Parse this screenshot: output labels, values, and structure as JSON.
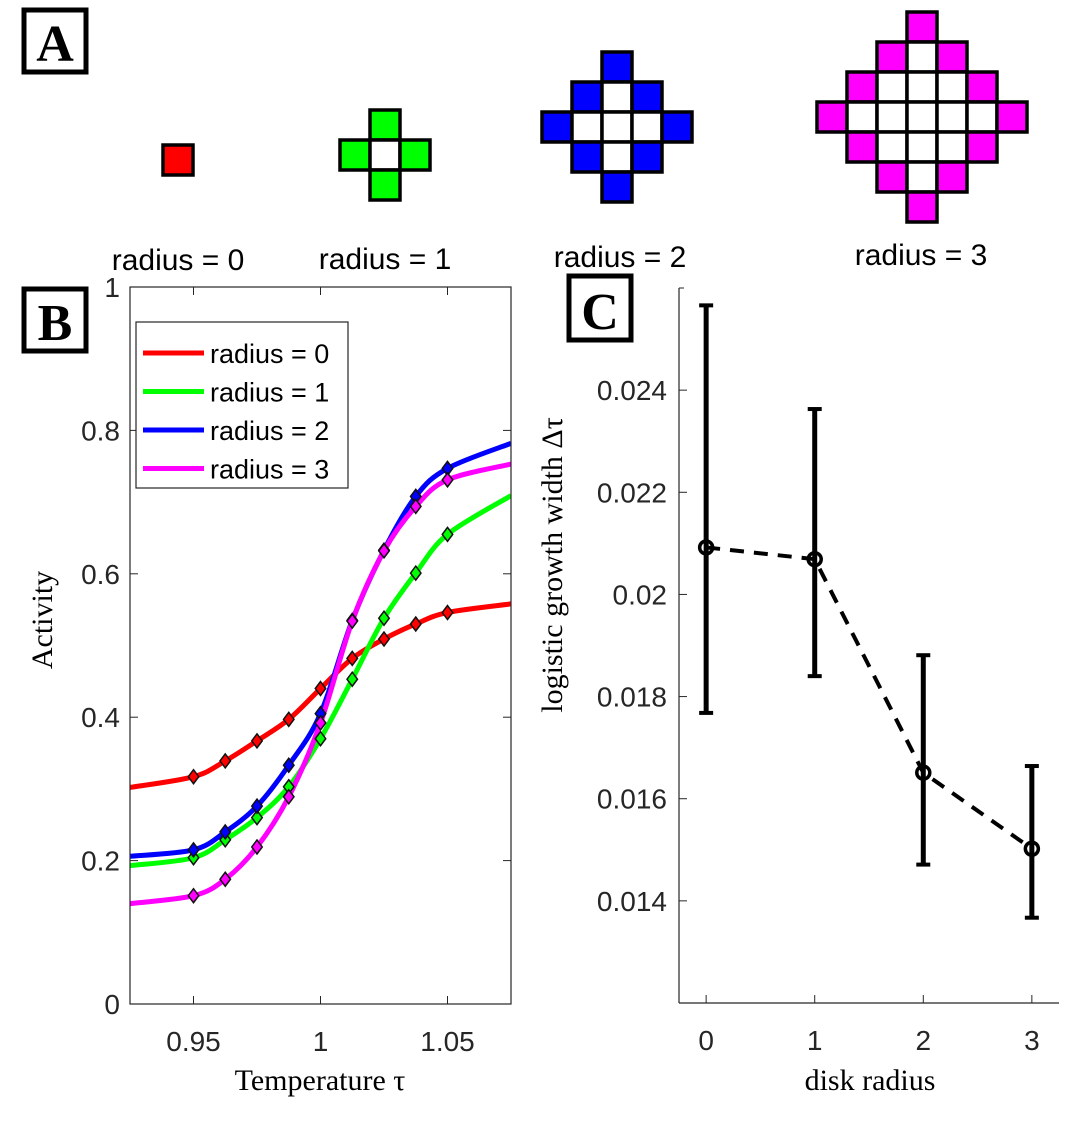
{
  "panels": {
    "A": {
      "label": "A"
    },
    "B": {
      "label": "B"
    },
    "C": {
      "label": "C"
    }
  },
  "disks": [
    {
      "radius": 0,
      "label": "radius = 0",
      "color": "#ff0000"
    },
    {
      "radius": 1,
      "label": "radius = 1",
      "color": "#00ff00"
    },
    {
      "radius": 2,
      "label": "radius = 2",
      "color": "#0000ff"
    },
    {
      "radius": 3,
      "label": "radius = 3",
      "color": "#ff00ff"
    }
  ],
  "chart_data": [
    {
      "panel": "B",
      "type": "line",
      "xlabel": "Temperature τ",
      "ylabel": "Activity",
      "xlim": [
        0.925,
        1.075
      ],
      "ylim": [
        0,
        1
      ],
      "xticks": [
        0.95,
        1,
        1.05
      ],
      "xtick_labels": [
        "0.95",
        "1",
        "1.05"
      ],
      "yticks": [
        0,
        0.2,
        0.4,
        0.6,
        0.8,
        1
      ],
      "ytick_labels": [
        "0",
        "0.2",
        "0.4",
        "0.6",
        "0.8",
        "1"
      ],
      "grid": false,
      "legend": "top-left",
      "marker": "diamond",
      "marker_x": [
        0.95,
        0.9625,
        0.975,
        0.9875,
        1.0,
        1.0125,
        1.025,
        1.0375,
        1.05
      ],
      "curve_x": [
        0.925,
        0.95,
        0.9625,
        0.975,
        0.9875,
        1.0,
        1.0125,
        1.025,
        1.0375,
        1.05,
        1.075
      ],
      "series": [
        {
          "name": "radius = 0",
          "color": "#ff0000",
          "markers": [
            0.317,
            0.339,
            0.367,
            0.397,
            0.44,
            0.482,
            0.509,
            0.53,
            0.546
          ],
          "curve": [
            0.302,
            0.317,
            0.339,
            0.367,
            0.397,
            0.44,
            0.482,
            0.509,
            0.53,
            0.546,
            0.558
          ]
        },
        {
          "name": "radius = 1",
          "color": "#00ff00",
          "markers": [
            0.204,
            0.229,
            0.26,
            0.303,
            0.37,
            0.453,
            0.538,
            0.601,
            0.655
          ],
          "curve": [
            0.193,
            0.204,
            0.229,
            0.26,
            0.303,
            0.37,
            0.453,
            0.538,
            0.601,
            0.655,
            0.709
          ]
        },
        {
          "name": "radius = 2",
          "color": "#0000ff",
          "markers": [
            0.215,
            0.24,
            0.276,
            0.333,
            0.405,
            0.535,
            0.633,
            0.708,
            0.747
          ],
          "curve": [
            0.206,
            0.215,
            0.24,
            0.276,
            0.333,
            0.405,
            0.535,
            0.633,
            0.708,
            0.747,
            0.782
          ]
        },
        {
          "name": "radius = 3",
          "color": "#ff00ff",
          "markers": [
            0.151,
            0.174,
            0.219,
            0.289,
            0.392,
            0.534,
            0.632,
            0.694,
            0.731
          ],
          "curve": [
            0.14,
            0.151,
            0.174,
            0.219,
            0.289,
            0.392,
            0.534,
            0.632,
            0.694,
            0.731,
            0.753
          ]
        }
      ]
    },
    {
      "panel": "C",
      "type": "line",
      "xlabel": "disk radius",
      "ylabel": "logistic growth width Δτ",
      "xlim": [
        -0.25,
        3.25
      ],
      "ylim": [
        0.012,
        0.026
      ],
      "xticks": [
        0,
        1,
        2,
        3
      ],
      "xtick_labels": [
        "0",
        "1",
        "2",
        "3"
      ],
      "yticks": [
        0.014,
        0.016,
        0.018,
        0.02,
        0.022,
        0.024
      ],
      "ytick_labels": [
        "0.014",
        "0.016",
        "0.018",
        "0.02",
        "0.022",
        "0.024"
      ],
      "grid": false,
      "line_style": "dashed",
      "marker": "circle",
      "color": "#000000",
      "x": [
        0,
        1,
        2,
        3
      ],
      "y": [
        0.02092,
        0.02069,
        0.01651,
        0.01502
      ],
      "err_low": [
        0.01768,
        0.0184,
        0.01471,
        0.01367
      ],
      "err_high": [
        0.02566,
        0.02363,
        0.01881,
        0.01664
      ]
    }
  ]
}
